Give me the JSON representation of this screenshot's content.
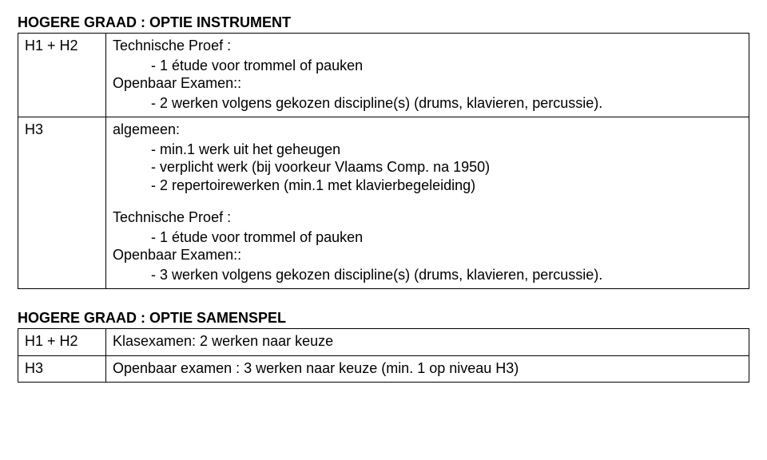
{
  "section1": {
    "title": "HOGERE GRAAD : OPTIE INSTRUMENT",
    "rows": [
      {
        "label": "H1 + H2",
        "tp_label": "Technische Proef :",
        "tp_item": "- 1 étude voor trommel of pauken",
        "oe_label": "Openbaar Examen::",
        "oe_item": "- 2 werken volgens gekozen discipline(s) (drums, klavieren, percussie)."
      },
      {
        "label": "H3",
        "alg_label": "algemeen:",
        "alg_item1": "- min.1 werk uit het geheugen",
        "alg_item2": "- verplicht werk (bij voorkeur Vlaams Comp. na 1950)",
        "alg_item3": "- 2 repertoirewerken (min.1 met klavierbegeleiding)",
        "tp_label": "Technische Proef :",
        "tp_item": "- 1 étude voor trommel of pauken",
        "oe_label": "Openbaar Examen::",
        "oe_item": "- 3 werken volgens gekozen discipline(s) (drums, klavieren, percussie)."
      }
    ]
  },
  "section2": {
    "title": "HOGERE GRAAD : OPTIE SAMENSPEL",
    "rows": [
      {
        "label": "H1 + H2",
        "content": "Klasexamen: 2 werken naar keuze"
      },
      {
        "label": "H3",
        "content": "Openbaar examen : 3 werken naar keuze (min. 1 op niveau H3)"
      }
    ]
  }
}
